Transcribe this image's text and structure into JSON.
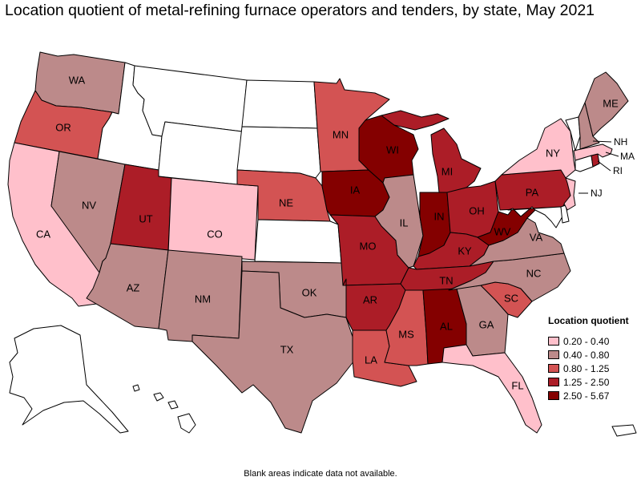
{
  "title": "Location quotient of metal-refining furnace operators and tenders, by state, May 2021",
  "footnote": "Blank areas indicate data not available.",
  "legend": {
    "title": "Location quotient",
    "items": [
      {
        "label": "0.20 - 0.40",
        "color": "#ffc0cb"
      },
      {
        "label": "0.40 - 0.80",
        "color": "#bc8a8a"
      },
      {
        "label": "0.80 - 1.25",
        "color": "#d35353"
      },
      {
        "label": "1.25 - 2.50",
        "color": "#ac1d27"
      },
      {
        "label": "2.50 - 5.67",
        "color": "#840000"
      }
    ]
  },
  "colors": {
    "na": "#ffffff",
    "c1": "#ffc0cb",
    "c2": "#bc8a8a",
    "c3": "#d35353",
    "c4": "#ac1d27",
    "c5": "#840000"
  },
  "states": [
    {
      "id": "WA",
      "label": "WA",
      "class": "c2"
    },
    {
      "id": "OR",
      "label": "OR",
      "class": "c3"
    },
    {
      "id": "CA",
      "label": "CA",
      "class": "c1"
    },
    {
      "id": "NV",
      "label": "NV",
      "class": "c2"
    },
    {
      "id": "ID",
      "label": "",
      "class": "na"
    },
    {
      "id": "MT",
      "label": "",
      "class": "na"
    },
    {
      "id": "WY",
      "label": "",
      "class": "na"
    },
    {
      "id": "UT",
      "label": "UT",
      "class": "c4"
    },
    {
      "id": "CO",
      "label": "CO",
      "class": "c1"
    },
    {
      "id": "AZ",
      "label": "AZ",
      "class": "c2"
    },
    {
      "id": "NM",
      "label": "NM",
      "class": "c2"
    },
    {
      "id": "ND",
      "label": "",
      "class": "na"
    },
    {
      "id": "SD",
      "label": "",
      "class": "na"
    },
    {
      "id": "NE",
      "label": "NE",
      "class": "c3"
    },
    {
      "id": "KS",
      "label": "",
      "class": "na"
    },
    {
      "id": "OK",
      "label": "OK",
      "class": "c2"
    },
    {
      "id": "TX",
      "label": "TX",
      "class": "c2"
    },
    {
      "id": "MN",
      "label": "MN",
      "class": "c3"
    },
    {
      "id": "IA",
      "label": "IA",
      "class": "c5"
    },
    {
      "id": "MO",
      "label": "MO",
      "class": "c4"
    },
    {
      "id": "AR",
      "label": "AR",
      "class": "c4"
    },
    {
      "id": "LA",
      "label": "LA",
      "class": "c3"
    },
    {
      "id": "WI",
      "label": "WI",
      "class": "c5"
    },
    {
      "id": "IL",
      "label": "IL",
      "class": "c2"
    },
    {
      "id": "MI",
      "label": "MI",
      "class": "c4"
    },
    {
      "id": "IN",
      "label": "IN",
      "class": "c5"
    },
    {
      "id": "OH",
      "label": "OH",
      "class": "c4"
    },
    {
      "id": "KY",
      "label": "KY",
      "class": "c4"
    },
    {
      "id": "TN",
      "label": "TN",
      "class": "c4"
    },
    {
      "id": "MS",
      "label": "MS",
      "class": "c3"
    },
    {
      "id": "AL",
      "label": "AL",
      "class": "c5"
    },
    {
      "id": "GA",
      "label": "GA",
      "class": "c2"
    },
    {
      "id": "FL",
      "label": "FL",
      "class": "c1"
    },
    {
      "id": "SC",
      "label": "SC",
      "class": "c3"
    },
    {
      "id": "NC",
      "label": "NC",
      "class": "c2"
    },
    {
      "id": "VA",
      "label": "VA",
      "class": "c2"
    },
    {
      "id": "WV",
      "label": "WV",
      "class": "c5"
    },
    {
      "id": "PA",
      "label": "PA",
      "class": "c4"
    },
    {
      "id": "NY",
      "label": "NY",
      "class": "c1"
    },
    {
      "id": "NJ",
      "label": "NJ",
      "class": "c1"
    },
    {
      "id": "DE",
      "label": "",
      "class": "na"
    },
    {
      "id": "MD",
      "label": "",
      "class": "na"
    },
    {
      "id": "CT",
      "label": "",
      "class": "na"
    },
    {
      "id": "RI",
      "label": "RI",
      "class": "c4"
    },
    {
      "id": "MA",
      "label": "MA",
      "class": "c1"
    },
    {
      "id": "VT",
      "label": "",
      "class": "na"
    },
    {
      "id": "NH",
      "label": "NH",
      "class": "c2"
    },
    {
      "id": "ME",
      "label": "ME",
      "class": "c2"
    },
    {
      "id": "AK",
      "label": "",
      "class": "na"
    },
    {
      "id": "HI",
      "label": "",
      "class": "na"
    },
    {
      "id": "PR",
      "label": "",
      "class": "na"
    }
  ]
}
